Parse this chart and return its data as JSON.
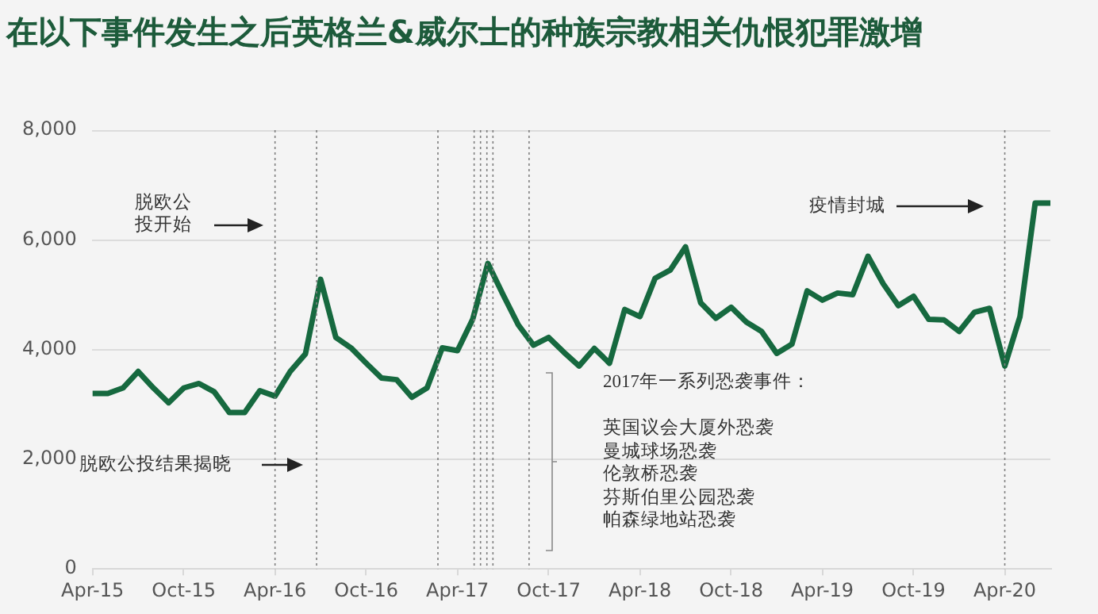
{
  "chart_data": {
    "type": "line",
    "title": "在以下事件发生之后英格兰&威尔士的种族宗教相关仇恨犯罪激增",
    "x": [
      "2015-04",
      "2015-05",
      "2015-06",
      "2015-07",
      "2015-08",
      "2015-09",
      "2015-10",
      "2015-11",
      "2015-12",
      "2016-01",
      "2016-02",
      "2016-03",
      "2016-04",
      "2016-05",
      "2016-06",
      "2016-07",
      "2016-08",
      "2016-09",
      "2016-10",
      "2016-11",
      "2016-12",
      "2017-01",
      "2017-02",
      "2017-03",
      "2017-04",
      "2017-05",
      "2017-06",
      "2017-07",
      "2017-08",
      "2017-09",
      "2017-10",
      "2017-11",
      "2017-12",
      "2018-01",
      "2018-02",
      "2018-03",
      "2018-04",
      "2018-05",
      "2018-06",
      "2018-07",
      "2018-08",
      "2018-09",
      "2018-10",
      "2018-11",
      "2018-12",
      "2019-01",
      "2019-02",
      "2019-03",
      "2019-04",
      "2019-05",
      "2019-06",
      "2019-07",
      "2019-08",
      "2019-09",
      "2019-10",
      "2019-11",
      "2019-12",
      "2020-01",
      "2020-02",
      "2020-03",
      "2020-04",
      "2020-05",
      "2020-06",
      "2020-07"
    ],
    "series": [
      {
        "color": "#16693f",
        "values": [
          3200,
          3200,
          3300,
          3600,
          3300,
          3030,
          3300,
          3380,
          3230,
          2850,
          2850,
          3250,
          3150,
          3600,
          3920,
          5280,
          4220,
          4030,
          3750,
          3480,
          3450,
          3130,
          3300,
          4030,
          3980,
          4550,
          5570,
          5000,
          4450,
          4080,
          4220,
          3950,
          3700,
          4020,
          3750,
          4730,
          4600,
          5300,
          5450,
          5870,
          4850,
          4570,
          4770,
          4500,
          4330,
          3930,
          4100,
          5070,
          4900,
          5030,
          5000,
          5700,
          5200,
          4800,
          4970,
          4550,
          4540,
          4330,
          4680,
          4750,
          3700,
          4600,
          6670,
          6670
        ]
      }
    ],
    "xlim": [
      "2015-04",
      "2020-07"
    ],
    "xticks": [
      {
        "value": "2015-04",
        "label": "Apr-15"
      },
      {
        "value": "2015-10",
        "label": "Oct-15"
      },
      {
        "value": "2016-04",
        "label": "Apr-16"
      },
      {
        "value": "2016-10",
        "label": "Oct-16"
      },
      {
        "value": "2017-04",
        "label": "Apr-17"
      },
      {
        "value": "2017-10",
        "label": "Oct-17"
      },
      {
        "value": "2018-04",
        "label": "Apr-18"
      },
      {
        "value": "2018-10",
        "label": "Oct-18"
      },
      {
        "value": "2019-04",
        "label": "Apr-19"
      },
      {
        "value": "2019-10",
        "label": "Oct-19"
      },
      {
        "value": "2020-04",
        "label": "Apr-20"
      }
    ],
    "ylim": [
      0,
      8000
    ],
    "yticks": [
      {
        "value": 0,
        "label": "0"
      },
      {
        "value": 2000,
        "label": "2,000"
      },
      {
        "value": 4000,
        "label": "4,000"
      },
      {
        "value": 6000,
        "label": "6,000"
      },
      {
        "value": 8000,
        "label": "8,000"
      }
    ],
    "grid": "y",
    "legend": false,
    "marker": "none",
    "ref_lines": [
      {
        "axis": "x",
        "value": "2016-04-01",
        "color": "#7f7f7f",
        "line_style": "dotted"
      },
      {
        "axis": "x",
        "value": "2016-06-23",
        "color": "#7f7f7f",
        "line_style": "dotted"
      },
      {
        "axis": "x",
        "value": "2017-02-21",
        "color": "#7f7f7f",
        "line_style": "dotted"
      },
      {
        "axis": "x",
        "value": "2017-05-04",
        "color": "#7f7f7f",
        "line_style": "dotted"
      },
      {
        "axis": "x",
        "value": "2017-05-17",
        "color": "#7f7f7f",
        "line_style": "dotted"
      },
      {
        "axis": "x",
        "value": "2017-05-30",
        "color": "#7f7f7f",
        "line_style": "dotted"
      },
      {
        "axis": "x",
        "value": "2017-06-11",
        "color": "#7f7f7f",
        "line_style": "dotted"
      },
      {
        "axis": "x",
        "value": "2017-08-23",
        "color": "#7f7f7f",
        "line_style": "dotted"
      },
      {
        "axis": "x",
        "value": "2020-04-01",
        "color": "#7f7f7f",
        "line_style": "dotted"
      }
    ],
    "annotations": [
      "脱欧公投开始",
      "脱欧公投结果揭晓",
      "疫情封城",
      "2017年一系列恐袭事件：",
      "英国议会大厦外恐袭",
      "曼城球场恐袭",
      "伦敦桥恐袭",
      "芬斯伯里公园恐袭",
      "帕森绿地站恐袭"
    ]
  }
}
